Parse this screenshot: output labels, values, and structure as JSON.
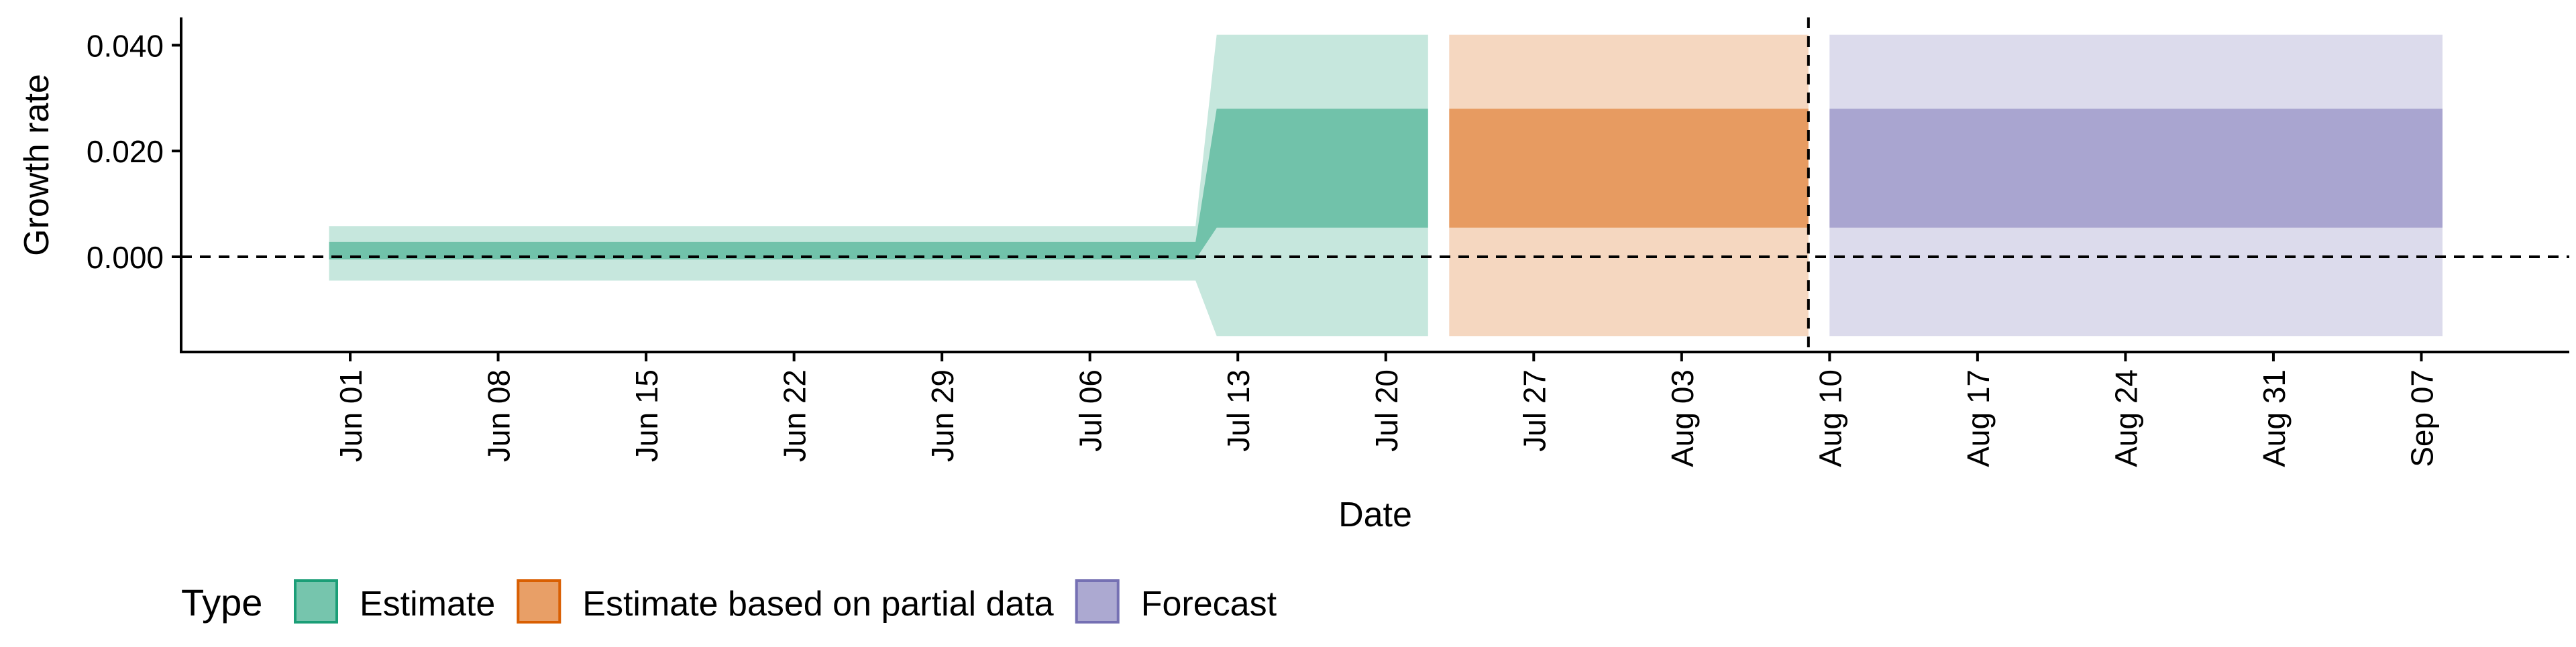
{
  "chart_data": {
    "type": "area",
    "title": "",
    "xlabel": "Date",
    "ylabel": "Growth rate",
    "x_ticks": [
      "Jun 01",
      "Jun 08",
      "Jun 15",
      "Jun 22",
      "Jun 29",
      "Jul 06",
      "Jul 13",
      "Jul 20",
      "Jul 27",
      "Aug 03",
      "Aug 10",
      "Aug 17",
      "Aug 24",
      "Aug 31",
      "Sep 07"
    ],
    "x_tick_dates": [
      "2020-06-01",
      "2020-06-08",
      "2020-06-15",
      "2020-06-22",
      "2020-06-29",
      "2020-07-06",
      "2020-07-13",
      "2020-07-20",
      "2020-07-27",
      "2020-08-03",
      "2020-08-10",
      "2020-08-17",
      "2020-08-24",
      "2020-08-31",
      "2020-09-07"
    ],
    "y_ticks": [
      "0.000",
      "0.020",
      "0.040"
    ],
    "ylim": [
      -0.018,
      0.045
    ],
    "xlim": [
      "2020-05-24",
      "2020-09-14"
    ],
    "reference_lines": [
      {
        "axis": "y",
        "value": 0.0,
        "style": "dashed"
      },
      {
        "axis": "x",
        "value": "2020-08-09",
        "style": "dashed"
      }
    ],
    "legend": {
      "title": "Type",
      "position": "bottom-left",
      "entries": [
        "Estimate",
        "Estimate based on partial data",
        "Forecast"
      ]
    },
    "series": [
      {
        "name": "Estimate",
        "color": "#1b9e77",
        "x": [
          "2020-05-31",
          "2020-07-11",
          "2020-07-12",
          "2020-07-22"
        ],
        "lower_90": [
          -0.0045,
          -0.0045,
          -0.015,
          -0.015
        ],
        "upper_90": [
          0.0058,
          0.0058,
          0.042,
          0.042
        ],
        "lower_50": [
          -0.0005,
          -0.0005,
          0.0055,
          0.0055
        ],
        "upper_50": [
          0.0028,
          0.0028,
          0.028,
          0.028
        ]
      },
      {
        "name": "Estimate based on partial data",
        "color": "#d95f02",
        "x": [
          "2020-07-23",
          "2020-08-09"
        ],
        "lower_90": [
          -0.015,
          -0.015
        ],
        "upper_90": [
          0.042,
          0.042
        ],
        "lower_50": [
          0.0055,
          0.0055
        ],
        "upper_50": [
          0.028,
          0.028
        ]
      },
      {
        "name": "Forecast",
        "color": "#7570b3",
        "x": [
          "2020-08-10",
          "2020-09-08"
        ],
        "lower_90": [
          -0.015,
          -0.015
        ],
        "upper_90": [
          0.042,
          0.042
        ],
        "lower_50": [
          0.0055,
          0.0055
        ],
        "upper_50": [
          0.028,
          0.028
        ]
      }
    ]
  }
}
